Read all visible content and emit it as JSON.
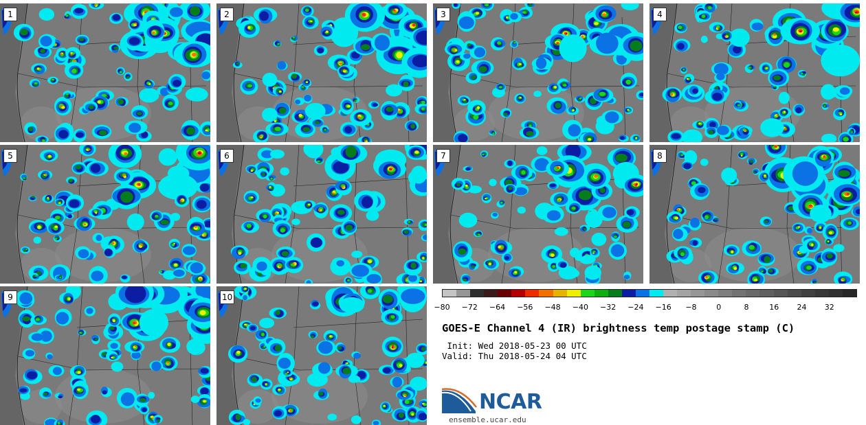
{
  "panels": [
    {
      "label": "1"
    },
    {
      "label": "2"
    },
    {
      "label": "3"
    },
    {
      "label": "4"
    },
    {
      "label": "5"
    },
    {
      "label": "6"
    },
    {
      "label": "7"
    },
    {
      "label": "8"
    },
    {
      "label": "9"
    },
    {
      "label": "10"
    }
  ],
  "colorbar": {
    "colors": [
      "#c4c4c4",
      "#959595",
      "#2e2e2e",
      "#3d1a1a",
      "#6b0000",
      "#b40000",
      "#ee2c00",
      "#f37000",
      "#e6b300",
      "#f0ee00",
      "#1cd51c",
      "#11ae11",
      "#057d1b",
      "#0b1ea3",
      "#0b72e6",
      "#00eaf0",
      "#b0b0b0",
      "#a3a3a3",
      "#969696",
      "#8a8a8a",
      "#7e7e7e",
      "#737373",
      "#696969",
      "#5f5f5f",
      "#555555",
      "#4b4b4b",
      "#414141",
      "#383838",
      "#303030",
      "#272727"
    ],
    "ticks": [
      "−80",
      "−72",
      "−64",
      "−56",
      "−48",
      "−40",
      "−32",
      "−24",
      "−16",
      "−8",
      "0",
      "8",
      "16",
      "24",
      "32"
    ]
  },
  "title": "GOES-E Channel 4 (IR) brightness temp postage stamp (C)",
  "init_line": " Init: Wed 2018-05-23 00 UTC",
  "valid_line": "Valid: Thu 2018-05-24 04 UTC",
  "logo": {
    "name": "NCAR",
    "url": "ensemble.ucar.edu",
    "colors": {
      "blue": "#1d5b9a",
      "accent": "#d86a28"
    }
  }
}
